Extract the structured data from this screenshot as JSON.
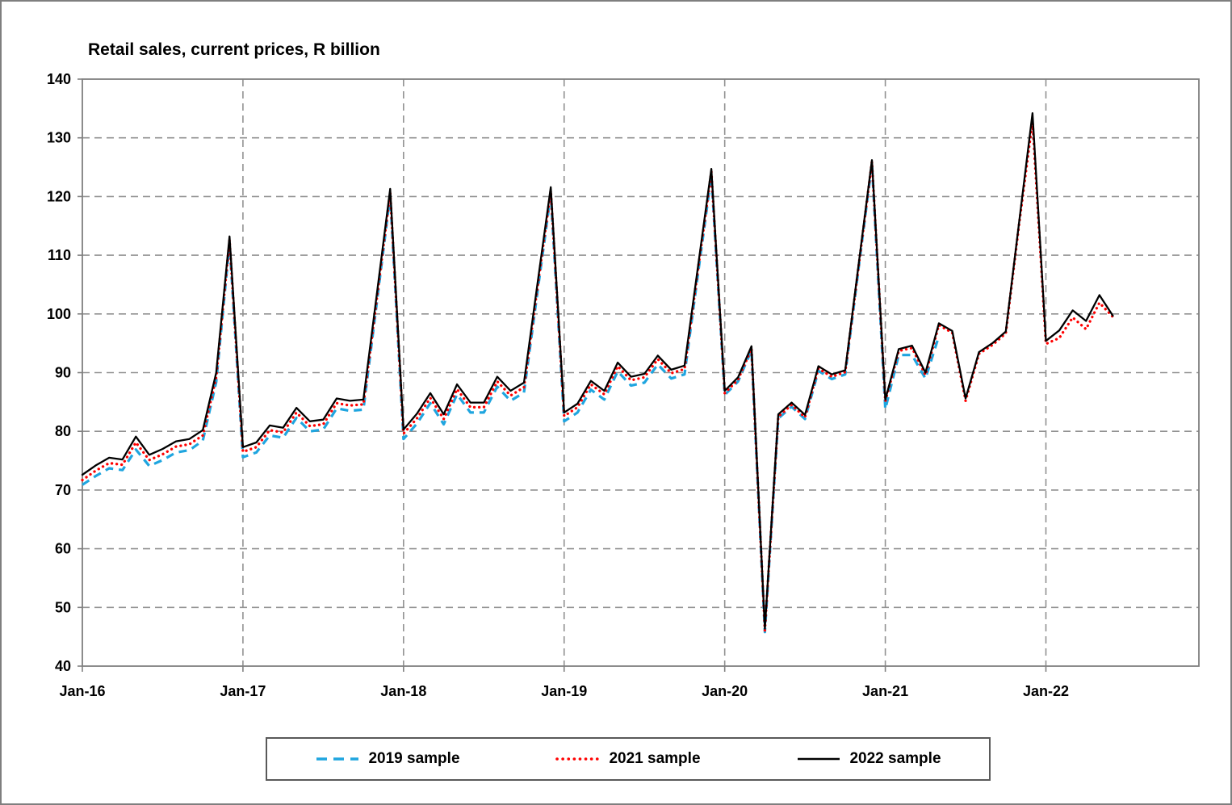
{
  "title": "Retail sales, current prices, R billion",
  "chart_data": {
    "type": "line",
    "x_axis": {
      "tick_labels": [
        "Jan-16",
        "Jan-17",
        "Jan-18",
        "Jan-19",
        "Jan-20",
        "Jan-21",
        "Jan-22"
      ],
      "months_per_tick": 12,
      "frequency": "monthly",
      "first_point": "Jan-16",
      "last_point": "Jun-22"
    },
    "y_axis": {
      "ylim": [
        40,
        140
      ],
      "tick_step": 10,
      "tick_labels": [
        "40",
        "50",
        "60",
        "70",
        "80",
        "90",
        "100",
        "110",
        "120",
        "130",
        "140"
      ]
    },
    "grid": "dashed-both-axes",
    "legend_position": "bottom",
    "series": [
      {
        "name": "2019 sample",
        "color": "#1FA5DF",
        "style": "dashed",
        "values": [
          70.9,
          72.4,
          73.7,
          73.4,
          76.9,
          74.1,
          75.1,
          76.4,
          76.8,
          78.4,
          88.4,
          112.1,
          75.6,
          76.4,
          79.3,
          78.9,
          82.3,
          80.0,
          80.3,
          83.9,
          83.5,
          83.7,
          101.9,
          120.2,
          78.7,
          81.3,
          84.8,
          81.2,
          86.3,
          83.2,
          83.2,
          87.6,
          85.2,
          86.6,
          103.6,
          120.4,
          81.7,
          83.2,
          87.1,
          85.4,
          90.2,
          87.8,
          88.3,
          91.4,
          89.0,
          89.7,
          106.8,
          123.6,
          86.2,
          88.5,
          93.8,
          45.8,
          82.2,
          84.2,
          82.1,
          90.3,
          88.9,
          89.7,
          107.7,
          125.6,
          83.8,
          93.0,
          93.0,
          89.0,
          96.2
        ]
      },
      {
        "name": "2021 sample",
        "color": "#FF0000",
        "style": "dotted",
        "values": [
          71.7,
          73.3,
          74.6,
          74.3,
          78.1,
          75.1,
          76.1,
          77.4,
          77.8,
          79.3,
          89.2,
          112.6,
          76.5,
          77.3,
          80.2,
          79.8,
          83.2,
          80.9,
          81.2,
          84.8,
          84.4,
          84.6,
          102.6,
          120.7,
          79.6,
          82.2,
          85.7,
          82.1,
          87.2,
          84.1,
          84.1,
          88.5,
          86.1,
          87.5,
          104.4,
          121.0,
          82.6,
          84.1,
          88.0,
          86.3,
          91.1,
          88.7,
          89.2,
          92.3,
          89.9,
          90.6,
          107.5,
          124.2,
          86.5,
          88.8,
          94.1,
          46.1,
          82.5,
          84.5,
          82.4,
          90.7,
          89.3,
          90.1,
          108.0,
          125.9,
          85.1,
          93.7,
          94.2,
          89.6,
          98.1,
          96.8,
          85.2,
          93.2,
          94.7,
          96.7,
          115.3,
          132.9,
          94.9,
          95.9,
          99.4,
          97.4,
          101.9,
          99.5
        ]
      },
      {
        "name": "2022 sample",
        "color": "#000000",
        "style": "solid",
        "values": [
          72.6,
          74.2,
          75.5,
          75.2,
          79.1,
          76.0,
          77.0,
          78.3,
          78.7,
          80.2,
          90.0,
          113.2,
          77.3,
          78.1,
          81.0,
          80.6,
          84.0,
          81.7,
          82.0,
          85.6,
          85.2,
          85.4,
          103.3,
          121.3,
          80.3,
          83.0,
          86.5,
          82.9,
          88.0,
          84.9,
          84.9,
          89.3,
          86.9,
          88.3,
          105.0,
          121.6,
          83.2,
          84.7,
          88.6,
          86.9,
          91.7,
          89.3,
          89.8,
          92.9,
          90.5,
          91.2,
          108.0,
          124.7,
          86.9,
          89.2,
          94.5,
          46.4,
          82.9,
          84.9,
          82.8,
          91.1,
          89.7,
          90.4,
          108.3,
          126.2,
          85.4,
          94.0,
          94.6,
          90.0,
          98.4,
          97.1,
          85.6,
          93.5,
          95.0,
          97.0,
          115.6,
          134.2,
          95.4,
          97.2,
          100.6,
          98.8,
          103.2,
          99.7
        ]
      }
    ],
    "colors": {
      "gridline": "#919191",
      "plot_border": "#808080",
      "legend_border": "#595959"
    }
  }
}
